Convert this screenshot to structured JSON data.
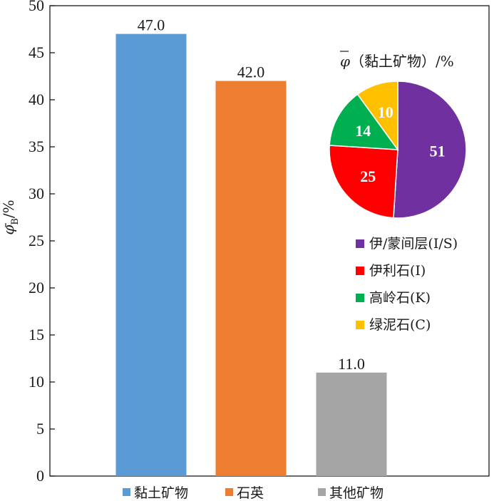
{
  "chart_data": [
    {
      "type": "bar",
      "categories": [
        "黏土矿物",
        "石英",
        "其他矿物"
      ],
      "values": [
        47.0,
        42.0,
        11.0
      ],
      "value_labels": [
        "47.0",
        "42.0",
        "11.0"
      ],
      "colors": [
        "#5b9bd5",
        "#ed7d31",
        "#a5a5a5"
      ],
      "ylabel_symbol": "φ",
      "ylabel_sub": "B",
      "ylabel_unit": "/%",
      "ylim": [
        0,
        50
      ],
      "yticks": [
        0,
        5,
        10,
        15,
        20,
        25,
        30,
        35,
        40,
        45,
        50
      ],
      "legend": [
        "黏土矿物",
        "石英",
        "其他矿物"
      ],
      "legend_position": "bottom",
      "grid": false
    },
    {
      "type": "pie",
      "title_symbol": "φ",
      "title_text": "（黏土矿物）/%",
      "labels": [
        "伊/蒙间层(I/S)",
        "伊利石(I)",
        "高岭石(K)",
        "绿泥石(C)"
      ],
      "values": [
        51,
        25,
        14,
        10
      ],
      "colors": [
        "#7030a0",
        "#ff0000",
        "#00b050",
        "#ffc000"
      ],
      "legend_position": "below"
    }
  ]
}
